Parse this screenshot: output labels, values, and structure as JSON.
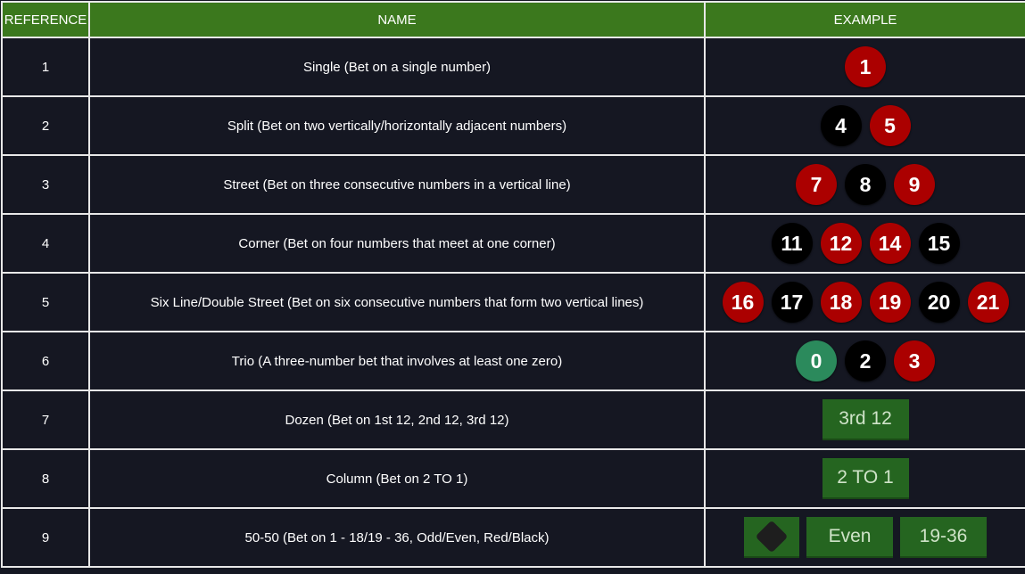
{
  "headers": [
    "REFERENCE",
    "NAME",
    "EXAMPLE"
  ],
  "colors": {
    "header": "#3b781d",
    "red": "#ab0000",
    "black": "#000000",
    "green": "#2b8a5c",
    "button": "#256520"
  },
  "rows": [
    {
      "ref": "1",
      "name": "Single (Bet on a single number)",
      "chips": [
        {
          "n": "1",
          "c": "red"
        }
      ]
    },
    {
      "ref": "2",
      "name": "Split (Bet on two vertically/horizontally adjacent numbers)",
      "chips": [
        {
          "n": "4",
          "c": "black"
        },
        {
          "n": "5",
          "c": "red"
        }
      ]
    },
    {
      "ref": "3",
      "name": "Street (Bet on three consecutive numbers in a vertical line)",
      "chips": [
        {
          "n": "7",
          "c": "red"
        },
        {
          "n": "8",
          "c": "black"
        },
        {
          "n": "9",
          "c": "red"
        }
      ]
    },
    {
      "ref": "4",
      "name": "Corner (Bet on four numbers that meet at one corner)",
      "chips": [
        {
          "n": "11",
          "c": "black"
        },
        {
          "n": "12",
          "c": "red"
        },
        {
          "n": "14",
          "c": "red"
        },
        {
          "n": "15",
          "c": "black"
        }
      ]
    },
    {
      "ref": "5",
      "name": "Six Line/Double Street (Bet on six consecutive numbers that form two vertical lines)",
      "chips": [
        {
          "n": "16",
          "c": "red"
        },
        {
          "n": "17",
          "c": "black"
        },
        {
          "n": "18",
          "c": "red"
        },
        {
          "n": "19",
          "c": "red"
        },
        {
          "n": "20",
          "c": "black"
        },
        {
          "n": "21",
          "c": "red"
        }
      ]
    },
    {
      "ref": "6",
      "name": "Trio (A three-number bet that involves at least one zero)",
      "chips": [
        {
          "n": "0",
          "c": "green"
        },
        {
          "n": "2",
          "c": "black"
        },
        {
          "n": "3",
          "c": "red"
        }
      ]
    },
    {
      "ref": "7",
      "name": "Dozen (Bet on 1st 12, 2nd 12, 3rd 12)",
      "buttons": [
        "3rd 12"
      ]
    },
    {
      "ref": "8",
      "name": "Column (Bet on 2 TO 1)",
      "buttons": [
        "2 TO 1"
      ]
    },
    {
      "ref": "9",
      "name": "50-50 (Bet on 1 - 18/19 - 36, Odd/Even, Red/Black)",
      "buttons": [
        "black-diamond-icon",
        "Even",
        "19-36"
      ]
    }
  ]
}
